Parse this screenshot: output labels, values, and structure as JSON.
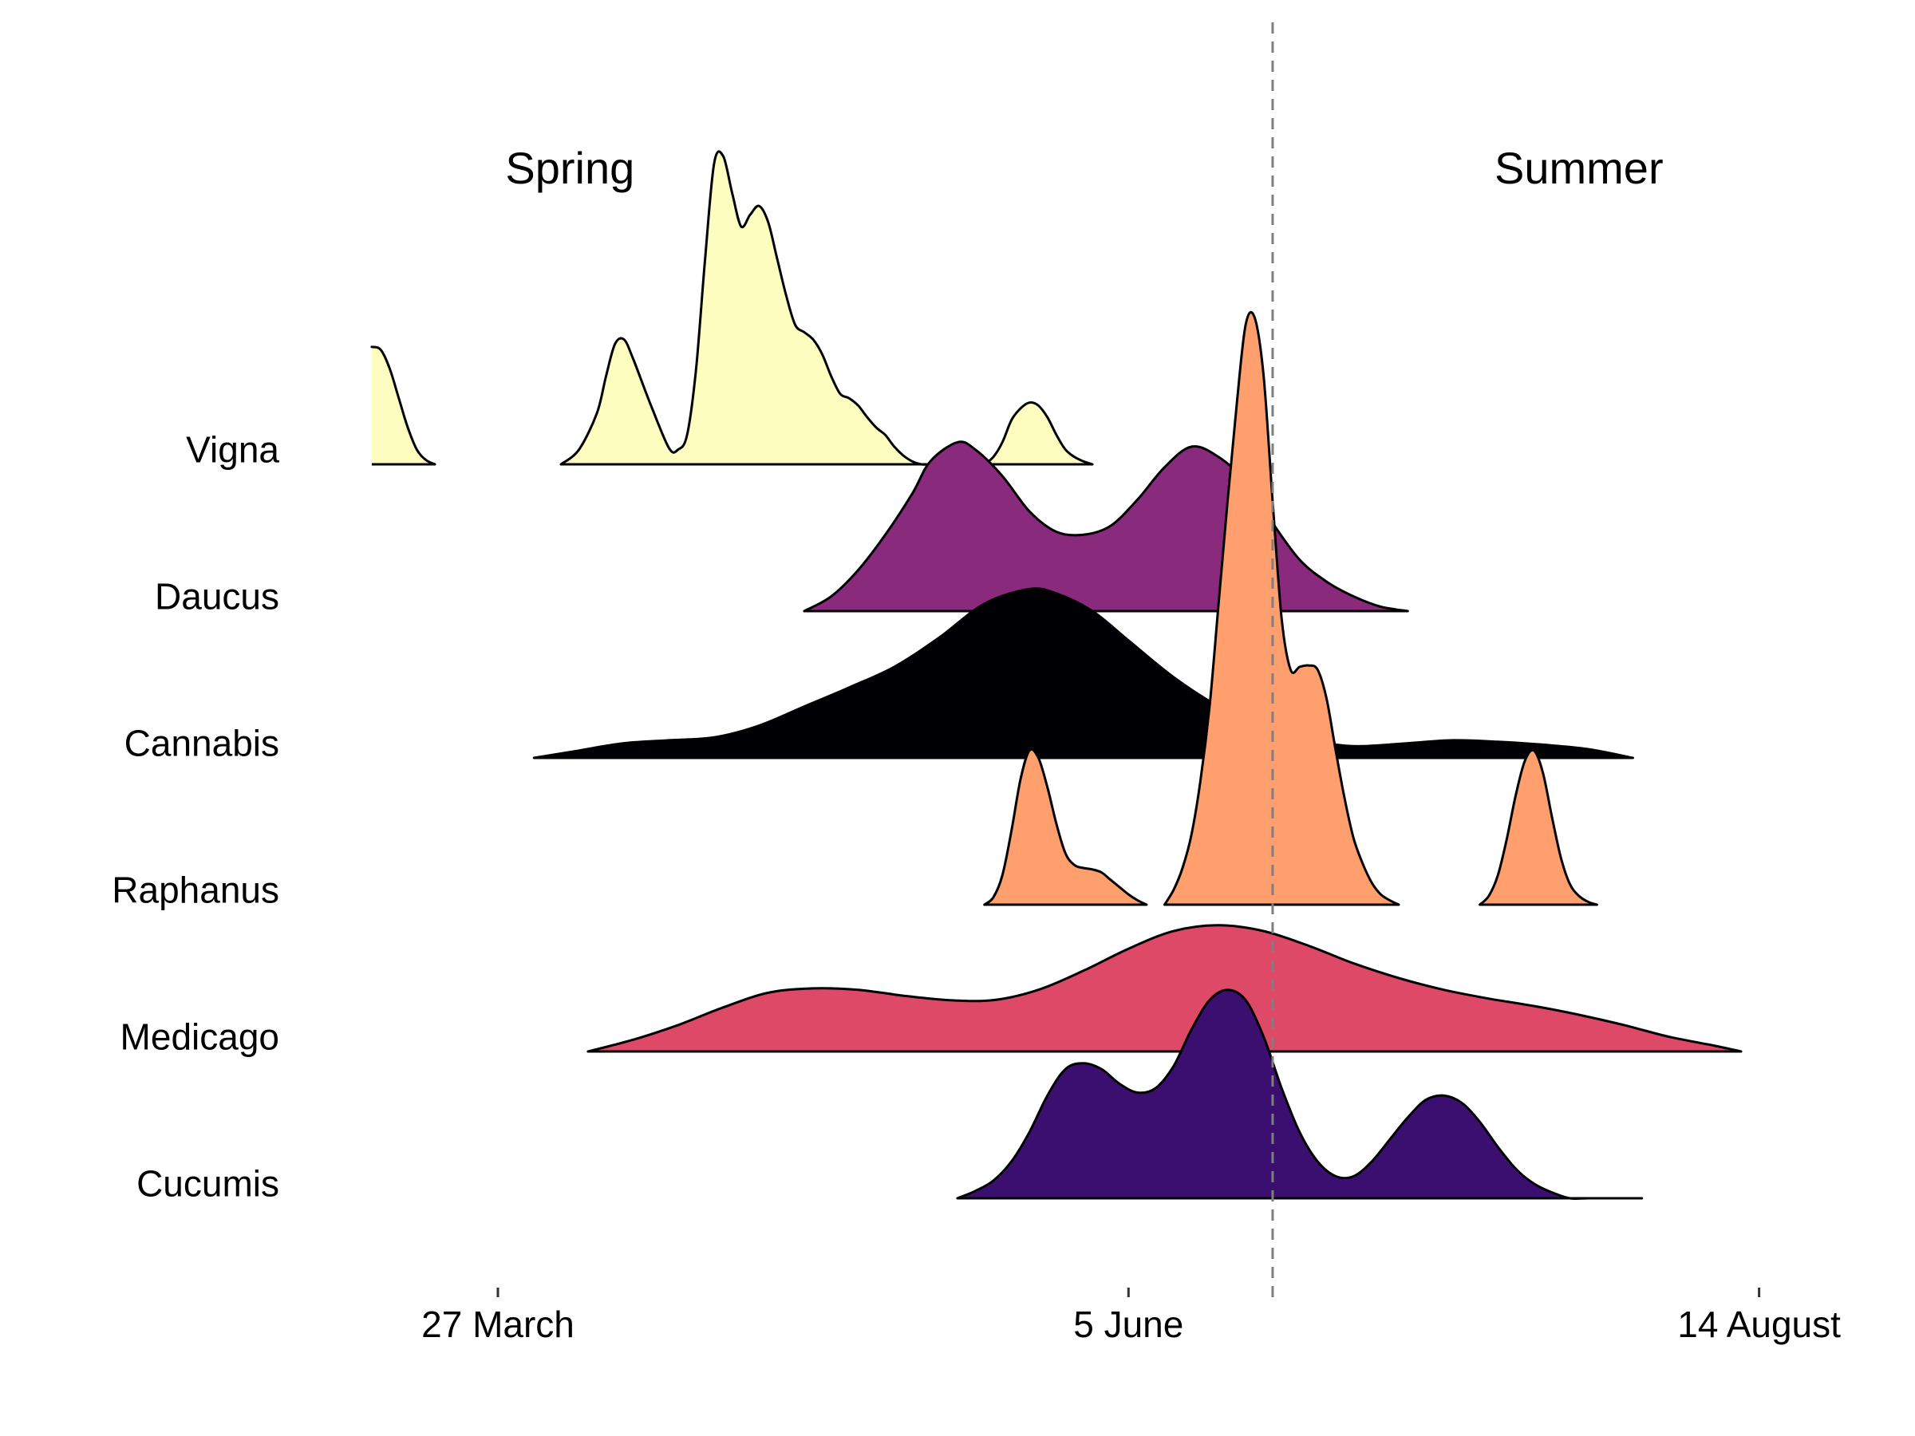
{
  "chart_data": {
    "type": "area",
    "subtype": "ridgeline",
    "title": "",
    "xlabel": "",
    "ylabel": "",
    "x_axis": {
      "kind": "date",
      "ticks": [
        {
          "label": "27 March",
          "date": "03-27"
        },
        {
          "label": "5 June",
          "date": "06-05"
        },
        {
          "label": "14 August",
          "date": "08-14"
        }
      ],
      "range": [
        "03-13",
        "08-14"
      ]
    },
    "season_labels": [
      {
        "text": "Spring",
        "date": "04-04"
      },
      {
        "text": "Summer",
        "date": "07-25"
      }
    ],
    "reference_line": {
      "date": "06-21",
      "style": "dashed",
      "color": "#7f7f7f"
    },
    "grid": false,
    "legend": "none",
    "relative_height_units": "row spacing",
    "series": [
      {
        "name": "Vigna",
        "color": "#FCFDBF",
        "segments": [
          {
            "x": [
              "03-13",
              "03-14",
              "03-15",
              "03-16",
              "03-17",
              "03-18",
              "03-19",
              "03-20"
            ],
            "y": [
              0.8,
              0.78,
              0.65,
              0.45,
              0.25,
              0.1,
              0.03,
              0.0
            ]
          },
          {
            "x": [
              "04-03",
              "04-05",
              "04-07",
              "04-08",
              "04-09",
              "04-10",
              "04-11",
              "04-13",
              "04-15",
              "04-16",
              "04-17",
              "04-18",
              "04-19",
              "04-20",
              "04-21",
              "04-22",
              "04-23",
              "04-24",
              "04-25",
              "04-26",
              "04-27",
              "04-28",
              "04-29",
              "04-30",
              "05-01",
              "05-02",
              "05-03",
              "05-04",
              "05-05",
              "05-06",
              "05-07",
              "05-08",
              "05-09",
              "05-10",
              "05-11",
              "05-12",
              "05-13",
              "05-14",
              "05-15",
              "05-16",
              "05-17",
              "05-18",
              "05-19"
            ],
            "y": [
              0.0,
              0.1,
              0.35,
              0.6,
              0.82,
              0.85,
              0.72,
              0.4,
              0.11,
              0.1,
              0.2,
              0.65,
              1.4,
              2.05,
              2.1,
              1.85,
              1.62,
              1.7,
              1.76,
              1.65,
              1.4,
              1.15,
              0.95,
              0.9,
              0.85,
              0.75,
              0.6,
              0.48,
              0.45,
              0.4,
              0.32,
              0.25,
              0.2,
              0.12,
              0.06,
              0.02,
              0.0,
              0.0,
              0.0,
              0.0,
              0.0,
              0.0,
              0.0
            ]
          },
          {
            "x": [
              "05-20",
              "05-21",
              "05-22",
              "05-23",
              "05-24",
              "05-25",
              "05-26",
              "05-27",
              "05-28",
              "05-29",
              "05-30",
              "05-31",
              "06-01"
            ],
            "y": [
              0.0,
              0.05,
              0.15,
              0.3,
              0.38,
              0.42,
              0.4,
              0.32,
              0.2,
              0.1,
              0.05,
              0.02,
              0.0
            ]
          }
        ]
      },
      {
        "name": "Daucus",
        "color": "#8A2A7C",
        "segments": [
          {
            "x": [
              "04-30",
              "05-03",
              "05-06",
              "05-09",
              "05-12",
              "05-14",
              "05-17",
              "05-19",
              "05-22",
              "05-25",
              "05-28",
              "05-31",
              "06-03",
              "06-06",
              "06-09",
              "06-12",
              "06-15",
              "06-18",
              "06-21",
              "06-24",
              "06-27",
              "06-30",
              "07-03",
              "07-06"
            ],
            "y": [
              0.0,
              0.1,
              0.28,
              0.52,
              0.8,
              1.02,
              1.15,
              1.1,
              0.92,
              0.68,
              0.54,
              0.52,
              0.58,
              0.76,
              0.98,
              1.12,
              1.05,
              0.88,
              0.6,
              0.35,
              0.2,
              0.1,
              0.03,
              0.0
            ]
          }
        ]
      },
      {
        "name": "Cannabis",
        "color": "#000004",
        "segments": [
          {
            "x": [
              "03-31",
              "04-05",
              "04-10",
              "04-15",
              "04-20",
              "04-25",
              "04-30",
              "05-05",
              "05-10",
              "05-15",
              "05-20",
              "05-25",
              "05-28",
              "06-01",
              "06-05",
              "06-10",
              "06-15",
              "06-20",
              "06-25",
              "06-28",
              "07-01",
              "07-06",
              "07-11",
              "07-16",
              "07-21",
              "07-26",
              "07-31"
            ],
            "y": [
              0.0,
              0.05,
              0.1,
              0.12,
              0.14,
              0.22,
              0.35,
              0.48,
              0.62,
              0.82,
              1.05,
              1.15,
              1.12,
              1.0,
              0.8,
              0.55,
              0.35,
              0.2,
              0.12,
              0.09,
              0.08,
              0.1,
              0.12,
              0.11,
              0.09,
              0.06,
              0.0
            ]
          }
        ]
      },
      {
        "name": "Raphanus",
        "color": "#FE9F6D",
        "segments": [
          {
            "x": [
              "05-20",
              "05-21",
              "05-22",
              "05-23",
              "05-24",
              "05-25",
              "05-26",
              "05-27",
              "05-28",
              "05-29",
              "05-30",
              "05-31",
              "06-01",
              "06-02",
              "06-03",
              "06-04",
              "06-05",
              "06-06",
              "06-07"
            ],
            "y": [
              0.0,
              0.05,
              0.2,
              0.5,
              0.85,
              1.05,
              1.0,
              0.8,
              0.55,
              0.35,
              0.27,
              0.25,
              0.24,
              0.22,
              0.17,
              0.12,
              0.07,
              0.03,
              0.0
            ]
          },
          {
            "x": [
              "06-09",
              "06-10",
              "06-11",
              "06-12",
              "06-13",
              "06-14",
              "06-15",
              "06-16",
              "06-17",
              "06-18",
              "06-19",
              "06-20",
              "06-21",
              "06-22",
              "06-23",
              "06-24",
              "06-25",
              "06-26",
              "06-27",
              "06-28",
              "06-29",
              "06-30",
              "07-01",
              "07-02",
              "07-03",
              "07-04",
              "07-05"
            ],
            "y": [
              0.0,
              0.1,
              0.25,
              0.48,
              0.85,
              1.35,
              2.05,
              2.75,
              3.4,
              3.95,
              4.0,
              3.6,
              2.75,
              1.95,
              1.6,
              1.62,
              1.63,
              1.6,
              1.4,
              1.05,
              0.72,
              0.45,
              0.28,
              0.15,
              0.07,
              0.03,
              0.0
            ]
          },
          {
            "x": [
              "07-14",
              "07-15",
              "07-16",
              "07-17",
              "07-18",
              "07-19",
              "07-20",
              "07-21",
              "07-22",
              "07-23",
              "07-24",
              "07-25",
              "07-26",
              "07-27"
            ],
            "y": [
              0.0,
              0.06,
              0.2,
              0.45,
              0.75,
              0.98,
              1.05,
              0.9,
              0.6,
              0.32,
              0.14,
              0.06,
              0.02,
              0.0
            ]
          }
        ]
      },
      {
        "name": "Medicago",
        "color": "#DE4968",
        "segments": [
          {
            "x": [
              "04-06",
              "04-11",
              "04-16",
              "04-21",
              "04-26",
              "05-01",
              "05-06",
              "05-11",
              "05-16",
              "05-21",
              "05-26",
              "05-31",
              "06-05",
              "06-10",
              "06-15",
              "06-20",
              "06-25",
              "06-30",
              "07-05",
              "07-10",
              "07-15",
              "07-20",
              "07-25",
              "07-30",
              "08-04",
              "08-09",
              "08-12"
            ],
            "y": [
              0.0,
              0.08,
              0.18,
              0.3,
              0.4,
              0.43,
              0.42,
              0.38,
              0.35,
              0.35,
              0.42,
              0.55,
              0.7,
              0.82,
              0.86,
              0.82,
              0.72,
              0.6,
              0.5,
              0.42,
              0.36,
              0.31,
              0.25,
              0.18,
              0.1,
              0.04,
              0.0
            ]
          }
        ]
      },
      {
        "name": "Cucumis",
        "color": "#3B0F70",
        "segments": [
          {
            "x": [
              "05-17",
              "05-19",
              "05-21",
              "05-23",
              "05-25",
              "05-27",
              "05-29",
              "05-31",
              "06-02",
              "06-04",
              "06-06",
              "06-08",
              "06-10",
              "06-12",
              "06-14",
              "06-16",
              "06-18",
              "06-20",
              "06-22",
              "06-24",
              "06-26",
              "06-28",
              "06-30",
              "07-02",
              "07-04",
              "07-06",
              "07-08",
              "07-10",
              "07-12",
              "07-14",
              "07-16",
              "07-18",
              "07-20",
              "07-22",
              "07-24",
              "07-26",
              "07-28",
              "07-30",
              "08-01"
            ],
            "y": [
              0.0,
              0.05,
              0.12,
              0.25,
              0.45,
              0.7,
              0.88,
              0.92,
              0.88,
              0.78,
              0.72,
              0.75,
              0.9,
              1.15,
              1.35,
              1.42,
              1.35,
              1.1,
              0.75,
              0.45,
              0.25,
              0.15,
              0.15,
              0.25,
              0.4,
              0.55,
              0.67,
              0.7,
              0.65,
              0.52,
              0.35,
              0.2,
              0.1,
              0.04,
              0.0,
              0.0,
              0.0,
              0.0,
              0.0
            ]
          }
        ]
      }
    ]
  }
}
